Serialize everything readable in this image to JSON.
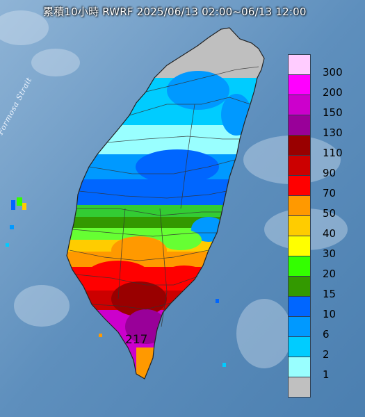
{
  "title": "累積10小時 RWRF 2025/06/13 02:00~06/13 12:00",
  "strait_label": "Formosa Strait",
  "max_value_label": "217",
  "legend": {
    "levels": [
      {
        "label": "300",
        "color": "#ffccff"
      },
      {
        "label": "200",
        "color": "#ff00ff"
      },
      {
        "label": "150",
        "color": "#cc00cc"
      },
      {
        "label": "130",
        "color": "#990099"
      },
      {
        "label": "110",
        "color": "#990000"
      },
      {
        "label": "90",
        "color": "#cc0000"
      },
      {
        "label": "70",
        "color": "#ff0000"
      },
      {
        "label": "50",
        "color": "#ff9900"
      },
      {
        "label": "40",
        "color": "#ffcc00"
      },
      {
        "label": "30",
        "color": "#ffff00"
      },
      {
        "label": "20",
        "color": "#33ff00"
      },
      {
        "label": "15",
        "color": "#339900"
      },
      {
        "label": "10",
        "color": "#0066ff"
      },
      {
        "label": "6",
        "color": "#0099ff"
      },
      {
        "label": "2",
        "color": "#00ccff"
      },
      {
        "label": "1",
        "color": "#99ffff"
      },
      {
        "label": "",
        "color": "#c0c0c0"
      }
    ]
  }
}
